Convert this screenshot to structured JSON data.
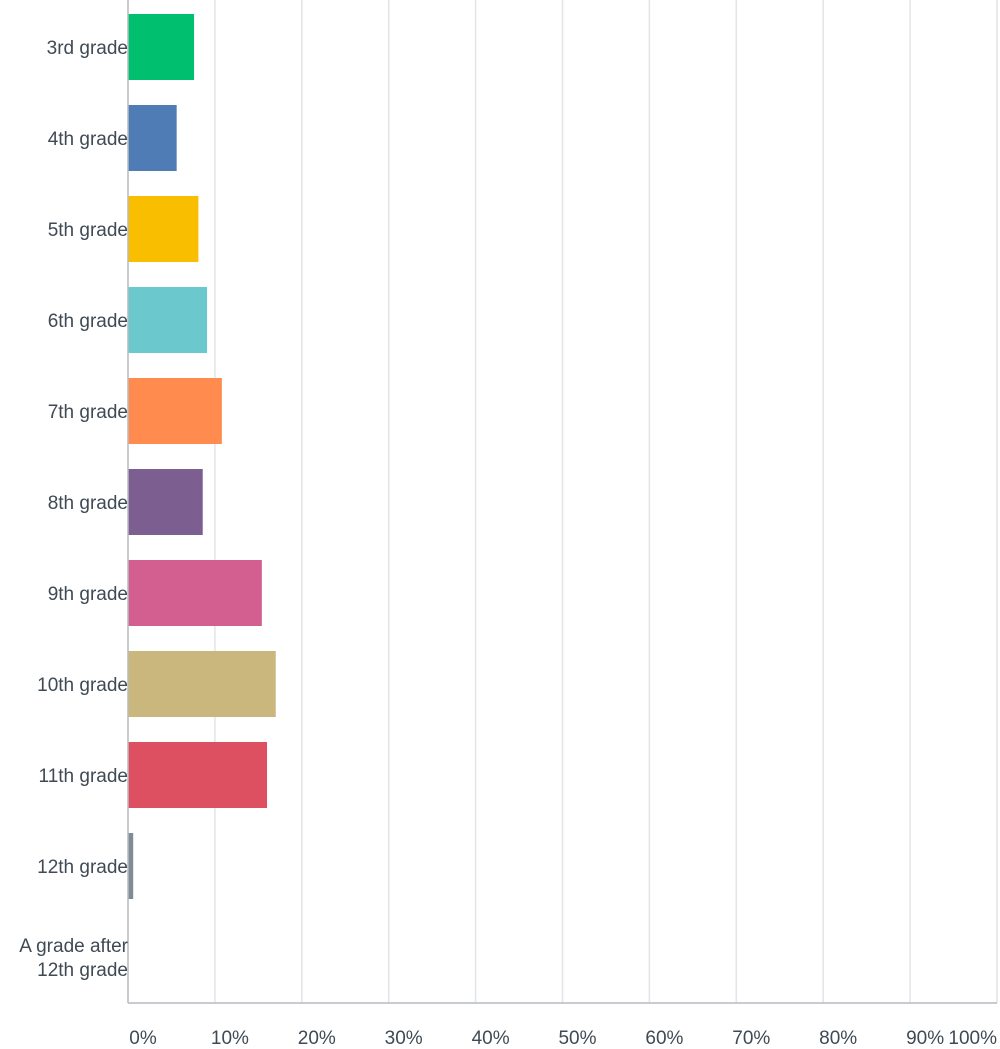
{
  "chart_data": {
    "type": "bar",
    "orientation": "horizontal",
    "categories": [
      [
        "3rd grade"
      ],
      [
        "4th grade"
      ],
      [
        "5th grade"
      ],
      [
        "6th grade"
      ],
      [
        "7th grade"
      ],
      [
        "8th grade"
      ],
      [
        "9th grade"
      ],
      [
        "10th grade"
      ],
      [
        "11th grade"
      ],
      [
        "12th grade"
      ],
      [
        "A grade after",
        "12th grade"
      ]
    ],
    "values": [
      7.6,
      5.6,
      8.1,
      9.1,
      10.8,
      8.6,
      15.4,
      17.0,
      16.0,
      0.6,
      0.0
    ],
    "colors": [
      "#00bf6f",
      "#507cb6",
      "#f9be00",
      "#6bc8cd",
      "#ff8b4f",
      "#7d5e90",
      "#d25f90",
      "#c9b77e",
      "#dd5062",
      "#7f8c95",
      "#99a0a8"
    ],
    "xlim": [
      0,
      100
    ],
    "xticks": [
      "0%",
      "10%",
      "20%",
      "30%",
      "40%",
      "50%",
      "60%",
      "70%",
      "80%",
      "90%",
      "100%"
    ],
    "grid": true,
    "title": "",
    "xlabel": "",
    "ylabel": ""
  }
}
